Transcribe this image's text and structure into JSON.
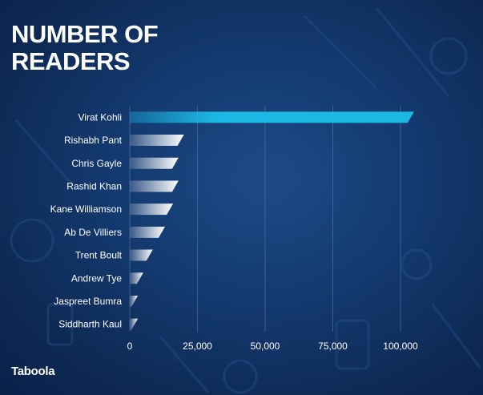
{
  "title": "NUMBER OF READERS",
  "logo": "Taboola",
  "colors": {
    "background": "#143a70",
    "highlight_bar": "#1ab8e3",
    "bar": "#ffffff",
    "text": "#ffffff"
  },
  "chart_data": {
    "type": "bar",
    "orientation": "horizontal",
    "title": "NUMBER OF READERS",
    "xlabel": "",
    "ylabel": "",
    "xlim": [
      0,
      105000
    ],
    "xticks": [
      0,
      25000,
      50000,
      75000,
      100000
    ],
    "xtick_labels": [
      "0",
      "25,000",
      "50,000",
      "75,000",
      "100,000"
    ],
    "grid": true,
    "categories": [
      "Virat Kohli",
      "Rishabh Pant",
      "Chris Gayle",
      "Rashid Khan",
      "Kane Williamson",
      "Ab De Villiers",
      "Trent Boult",
      "Andrew Tye",
      "Jaspreet Bumra",
      "Siddharth Kaul"
    ],
    "values": [
      105000,
      20000,
      18000,
      18000,
      16000,
      13000,
      8500,
      5000,
      3000,
      3000
    ]
  }
}
